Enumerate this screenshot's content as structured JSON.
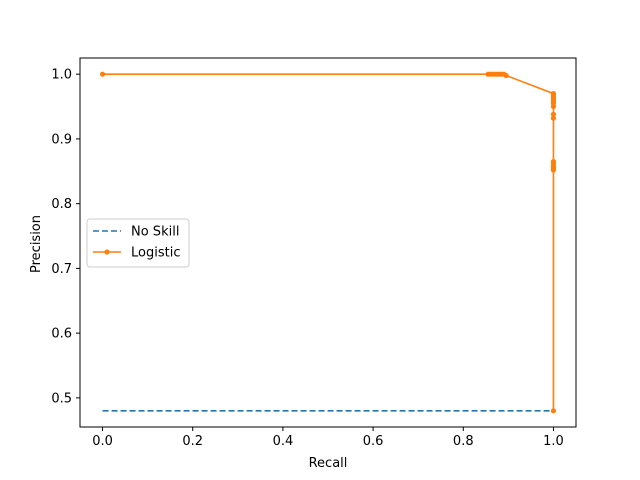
{
  "chart_data": {
    "type": "line",
    "title": "",
    "xlabel": "Recall",
    "ylabel": "Precision",
    "xlim": [
      -0.05,
      1.05
    ],
    "ylim": [
      0.455,
      1.025
    ],
    "xticks": [
      0.0,
      0.2,
      0.4,
      0.6,
      0.8,
      1.0
    ],
    "xtick_labels": [
      "0.0",
      "0.2",
      "0.4",
      "0.6",
      "0.8",
      "1.0"
    ],
    "yticks": [
      0.5,
      0.6,
      0.7,
      0.8,
      0.9,
      1.0
    ],
    "ytick_labels": [
      "0.5",
      "0.6",
      "0.7",
      "0.8",
      "0.9",
      "1.0"
    ],
    "grid": false,
    "legend_position": "center-left",
    "series": [
      {
        "name": "No Skill",
        "color": "#1f77b4",
        "style": "dashed",
        "markers": false,
        "x": [
          0,
          1
        ],
        "y": [
          0.48,
          0.48
        ]
      },
      {
        "name": "Logistic",
        "color": "#ff7f0e",
        "style": "solid",
        "markers": true,
        "x": [
          0.0,
          0.855,
          0.86,
          0.865,
          0.87,
          0.875,
          0.88,
          0.885,
          0.89,
          0.895,
          1.0,
          1.0,
          1.0,
          1.0,
          1.0,
          1.0,
          1.0,
          1.0,
          1.0,
          1.0,
          1.0,
          1.0,
          1.0,
          1.0,
          1.0
        ],
        "y": [
          1.0,
          1.0,
          1.0,
          1.0,
          1.0,
          1.0,
          1.0,
          1.0,
          1.0,
          0.998,
          0.97,
          0.968,
          0.965,
          0.962,
          0.958,
          0.955,
          0.95,
          0.938,
          0.932,
          0.865,
          0.862,
          0.858,
          0.855,
          0.852,
          0.48
        ]
      }
    ]
  }
}
